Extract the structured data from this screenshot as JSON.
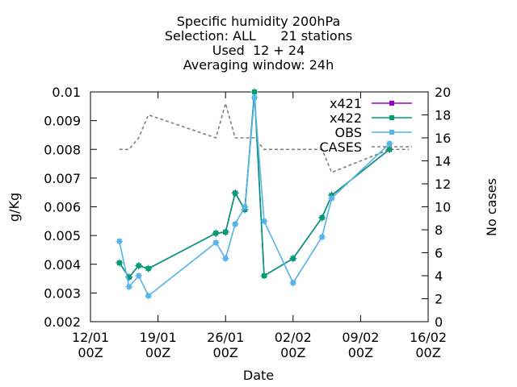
{
  "chart_data": {
    "type": "line",
    "title": [
      "Specific humidity 200hPa",
      "Selection: ALL      21 stations",
      "Used  12 + 24",
      "Averaging window: 24h"
    ],
    "xlabel": "Date",
    "ylabel": "g/Kg",
    "y2label": "No cases",
    "xlim": [
      "2021-01-12T00:00",
      "2021-02-16T00:00"
    ],
    "ylim": [
      0.002,
      0.01
    ],
    "y2lim": [
      0,
      20
    ],
    "x_ticks": [
      {
        "line1": "12/01",
        "line2": "00Z"
      },
      {
        "line1": "19/01",
        "line2": "00Z"
      },
      {
        "line1": "26/01",
        "line2": "00Z"
      },
      {
        "line1": "02/02",
        "line2": "00Z"
      },
      {
        "line1": "09/02",
        "line2": "00Z"
      },
      {
        "line1": "16/02",
        "line2": "00Z"
      }
    ],
    "y_ticks": [
      "0.002",
      "0.003",
      "0.004",
      "0.005",
      "0.006",
      "0.007",
      "0.008",
      "0.009",
      "0.01"
    ],
    "y2_ticks": [
      "0",
      "2",
      "4",
      "6",
      "8",
      "10",
      "12",
      "14",
      "16",
      "18",
      "20"
    ],
    "grid": false,
    "legend_position": "top-right",
    "series": [
      {
        "name": "x421",
        "color": "#9400d3",
        "marker": "filled-square",
        "x": [
          "2021-01-15T00:00",
          "2021-01-16T00:00",
          "2021-01-17T00:00",
          "2021-01-18T00:00",
          "2021-01-25T00:00",
          "2021-01-26T00:00",
          "2021-01-27T00:00",
          "2021-01-28T00:00",
          "2021-01-29T00:00",
          "2021-01-30T00:00",
          "2021-02-02T00:00",
          "2021-02-05T00:00",
          "2021-02-06T00:00",
          "2021-02-12T00:00"
        ],
        "y": [
          0.00405,
          0.00355,
          0.00395,
          0.00385,
          0.00508,
          0.00512,
          0.00648,
          0.0059,
          0.01,
          0.0036,
          0.0042,
          0.00562,
          0.0064,
          0.008
        ]
      },
      {
        "name": "x422",
        "color": "#009e73",
        "marker": "filled-square",
        "x": [
          "2021-01-15T00:00",
          "2021-01-16T00:00",
          "2021-01-17T00:00",
          "2021-01-18T00:00",
          "2021-01-25T00:00",
          "2021-01-26T00:00",
          "2021-01-27T00:00",
          "2021-01-28T00:00",
          "2021-01-29T00:00",
          "2021-01-30T00:00",
          "2021-02-02T00:00",
          "2021-02-05T00:00",
          "2021-02-06T00:00",
          "2021-02-12T00:00"
        ],
        "y": [
          0.00405,
          0.00355,
          0.00395,
          0.00385,
          0.00508,
          0.00512,
          0.00648,
          0.0059,
          0.01,
          0.0036,
          0.0042,
          0.00562,
          0.0064,
          0.008
        ]
      },
      {
        "name": "OBS",
        "color": "#56b4e9",
        "marker": "filled-square",
        "x": [
          "2021-01-15T00:00",
          "2021-01-16T00:00",
          "2021-01-17T00:00",
          "2021-01-18T00:00",
          "2021-01-25T00:00",
          "2021-01-26T00:00",
          "2021-01-27T00:00",
          "2021-01-28T00:00",
          "2021-01-29T00:00",
          "2021-01-30T00:00",
          "2021-02-02T00:00",
          "2021-02-05T00:00",
          "2021-02-06T00:00",
          "2021-02-12T00:00"
        ],
        "y": [
          0.0048,
          0.00322,
          0.0036,
          0.0029,
          0.00475,
          0.0042,
          0.0054,
          0.006,
          0.0098,
          0.0055,
          0.00335,
          0.00495,
          0.0063,
          0.0082
        ]
      },
      {
        "name": "CASES",
        "color": "#808080",
        "dash": "dashed",
        "axis": "y2",
        "x": [
          "2021-01-15T00:00",
          "2021-01-16T00:00",
          "2021-01-17T00:00",
          "2021-01-18T00:00",
          "2021-01-25T00:00",
          "2021-01-26T00:00",
          "2021-01-27T00:00",
          "2021-01-28T00:00",
          "2021-01-29T00:00",
          "2021-01-30T00:00",
          "2021-02-02T00:00",
          "2021-02-05T00:00",
          "2021-02-06T00:00",
          "2021-02-12T00:00",
          "2021-02-14T00:00"
        ],
        "y": [
          15,
          15,
          16,
          18,
          16,
          19,
          16,
          16,
          16,
          15,
          15,
          15,
          13,
          15,
          15
        ]
      }
    ]
  }
}
